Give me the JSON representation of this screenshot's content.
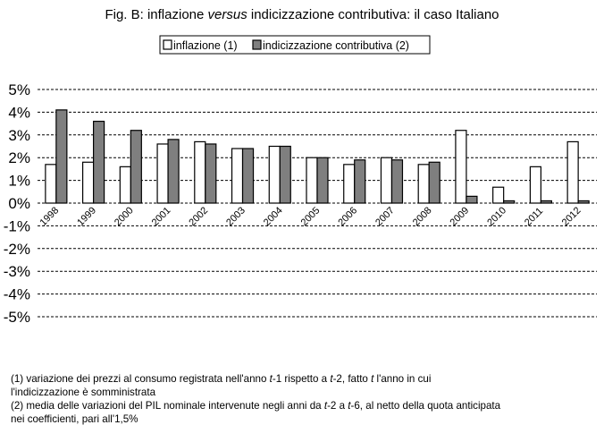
{
  "title": {
    "prefix": "Fig. B: inflazione",
    "emph": "versus",
    "suffix": "indicizzazione contributiva: il caso Italiano"
  },
  "colors": {
    "series_1_fill": "#ffffff",
    "series_2_fill": "#7f7f7f",
    "bar_stroke": "#000000",
    "gridline": "#000000"
  },
  "chart_data": {
    "type": "bar",
    "categories": [
      "1998",
      "1999",
      "2000",
      "2001",
      "2002",
      "2003",
      "2004",
      "2005",
      "2006",
      "2007",
      "2008",
      "2009",
      "2010",
      "2011",
      "2012"
    ],
    "series": [
      {
        "name": "inflazione (1)",
        "values": [
          1.7,
          1.8,
          1.6,
          2.6,
          2.7,
          2.4,
          2.5,
          2.0,
          1.7,
          2.0,
          1.7,
          3.2,
          0.7,
          1.6,
          2.7
        ]
      },
      {
        "name": "indicizzazione contributiva (2)",
        "values": [
          4.1,
          3.6,
          3.2,
          2.8,
          2.6,
          2.4,
          2.5,
          2.0,
          1.9,
          1.9,
          1.8,
          0.3,
          0.1,
          0.1,
          0.1
        ]
      }
    ],
    "ylim": [
      -5,
      5
    ],
    "ytick_labels": [
      "5%",
      "4%",
      "3%",
      "2%",
      "1%",
      "0%",
      "-1%",
      "-2%",
      "-3%",
      "-4%",
      "-5%"
    ],
    "grid": "horizontal dashed",
    "legend_position": "top-center"
  },
  "notes": {
    "n1_a": "(1) variazione dei prezzi al consumo registrata nell'anno ",
    "n1_t1": "t",
    "n1_b": "-1 rispetto a ",
    "n1_t2": "t",
    "n1_c": "-2, fatto ",
    "n1_t3": "t",
    "n1_d": " l'anno in cui",
    "n1_line2": "l'indicizzazione è somministrata",
    "n2_a": "(2) media delle variazioni del PIL nominale intervenute negli anni da ",
    "n2_t1": "t",
    "n2_b": "-2 a ",
    "n2_t2": "t",
    "n2_c": "-6, al netto della quota anticipata",
    "n2_line2": "nei coefficienti, pari all'1,5%"
  }
}
